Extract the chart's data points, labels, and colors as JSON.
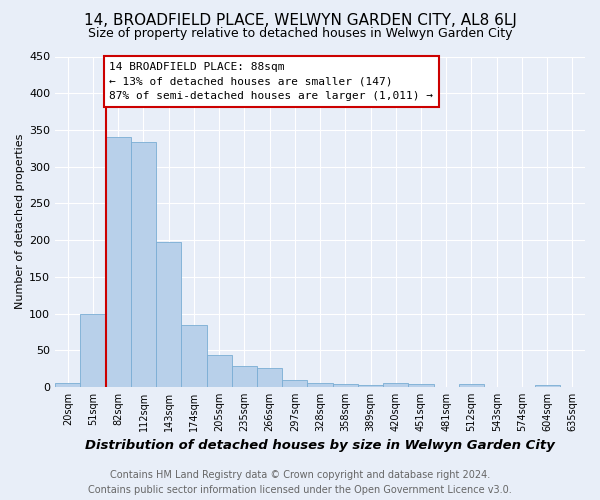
{
  "title": "14, BROADFIELD PLACE, WELWYN GARDEN CITY, AL8 6LJ",
  "subtitle": "Size of property relative to detached houses in Welwyn Garden City",
  "xlabel": "Distribution of detached houses by size in Welwyn Garden City",
  "ylabel": "Number of detached properties",
  "footer_line1": "Contains HM Land Registry data © Crown copyright and database right 2024.",
  "footer_line2": "Contains public sector information licensed under the Open Government Licence v3.0.",
  "bar_labels": [
    "20sqm",
    "51sqm",
    "82sqm",
    "112sqm",
    "143sqm",
    "174sqm",
    "205sqm",
    "235sqm",
    "266sqm",
    "297sqm",
    "328sqm",
    "358sqm",
    "389sqm",
    "420sqm",
    "451sqm",
    "481sqm",
    "512sqm",
    "543sqm",
    "574sqm",
    "604sqm",
    "635sqm"
  ],
  "bar_values": [
    6,
    100,
    341,
    333,
    197,
    85,
    43,
    28,
    26,
    10,
    5,
    4,
    3,
    5,
    4,
    0,
    4,
    0,
    0,
    3,
    0
  ],
  "bar_color": "#b8d0ea",
  "bar_edgecolor": "#7aadd4",
  "ann_line1": "14 BROADFIELD PLACE: 88sqm",
  "ann_line2": "← 13% of detached houses are smaller (147)",
  "ann_line3": "87% of semi-detached houses are larger (1,011) →",
  "annotation_box_edgecolor": "#cc0000",
  "vline_color": "#cc0000",
  "vline_xindex": 2,
  "ylim": [
    0,
    450
  ],
  "yticks": [
    0,
    50,
    100,
    150,
    200,
    250,
    300,
    350,
    400,
    450
  ],
  "background_color": "#e8eef8",
  "grid_color": "#ffffff",
  "title_fontsize": 11,
  "subtitle_fontsize": 9,
  "xlabel_fontsize": 9.5,
  "ylabel_fontsize": 8,
  "ann_fontsize": 8,
  "footer_fontsize": 7
}
